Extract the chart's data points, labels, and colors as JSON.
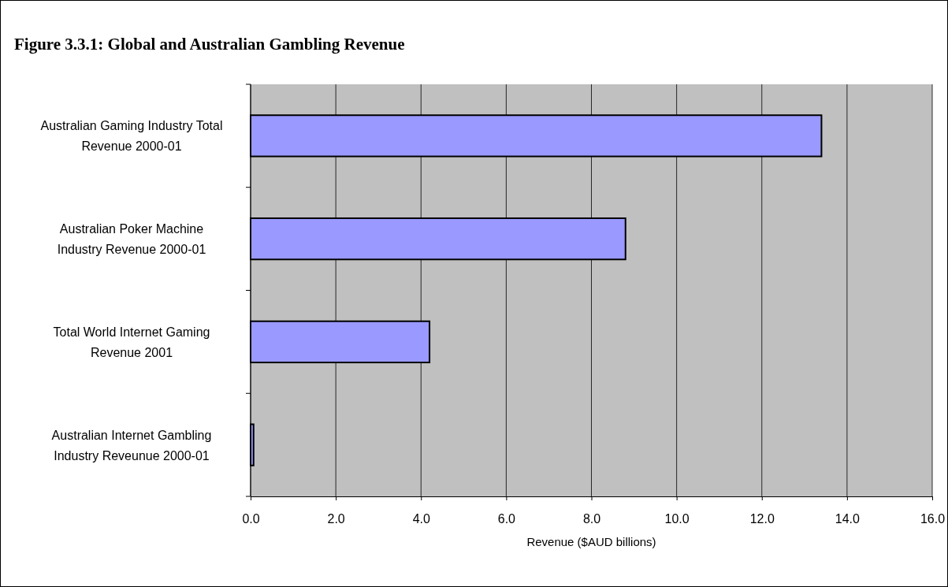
{
  "chart_data": {
    "type": "bar",
    "orientation": "horizontal",
    "title": "Figure 3.3.1: Global and Australian Gambling Revenue",
    "xlabel": "Revenue ($AUD billions)",
    "categories": [
      "Australian Gaming Industry Total Revenue 2000-01",
      "Australian Poker Machine Industry Revenue 2000-01",
      "Total World Internet Gaming Revenue 2001",
      "Australian Internet Gambling Industry Reveunue 2000-01"
    ],
    "values": [
      13.4,
      8.8,
      4.2,
      0.07
    ],
    "color": "#9999ff",
    "xlim": [
      0,
      16
    ],
    "xticks": [
      {
        "value": 0,
        "label": "0.0"
      },
      {
        "value": 2,
        "label": "2.0"
      },
      {
        "value": 4,
        "label": "4.0"
      },
      {
        "value": 6,
        "label": "6.0"
      },
      {
        "value": 8,
        "label": "8.0"
      },
      {
        "value": 10,
        "label": "10.0"
      },
      {
        "value": 12,
        "label": "12.0"
      },
      {
        "value": 14,
        "label": "14.0"
      },
      {
        "value": 16,
        "label": "16.0"
      }
    ],
    "grid": "x"
  }
}
